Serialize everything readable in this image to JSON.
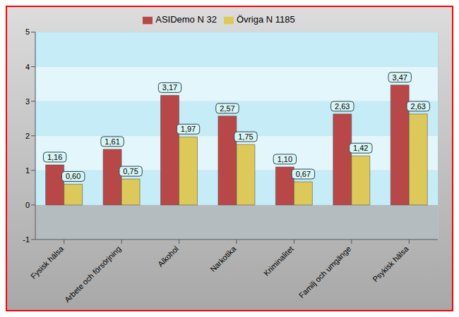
{
  "chart_data": {
    "type": "bar",
    "categories": [
      "Fysisk hälsa",
      "Arbete och försörjning",
      "Alkohol",
      "Narkotika",
      "Kriminalitet",
      "Familj och umgänge",
      "Psykisk hälsa"
    ],
    "series": [
      {
        "name": "ASIDemo N 32",
        "color": "#b84848",
        "values": [
          1.16,
          1.61,
          3.17,
          2.57,
          1.1,
          2.63,
          3.47
        ],
        "value_labels": [
          "1,16",
          "1,61",
          "3,17",
          "2,57",
          "1,10",
          "2,63",
          "3,47"
        ]
      },
      {
        "name": "Övriga N 1185",
        "color": "#dcc95a",
        "values": [
          0.6,
          0.75,
          1.97,
          1.75,
          0.67,
          1.42,
          2.63
        ],
        "value_labels": [
          "0,60",
          "0,75",
          "1,97",
          "1,75",
          "0,67",
          "1,42",
          "2,63"
        ]
      }
    ],
    "ylim": [
      -1,
      5
    ],
    "yticks": [
      -1,
      0,
      1,
      2,
      3,
      4,
      5
    ],
    "grid": true,
    "legend": "top",
    "data_labels": true
  }
}
